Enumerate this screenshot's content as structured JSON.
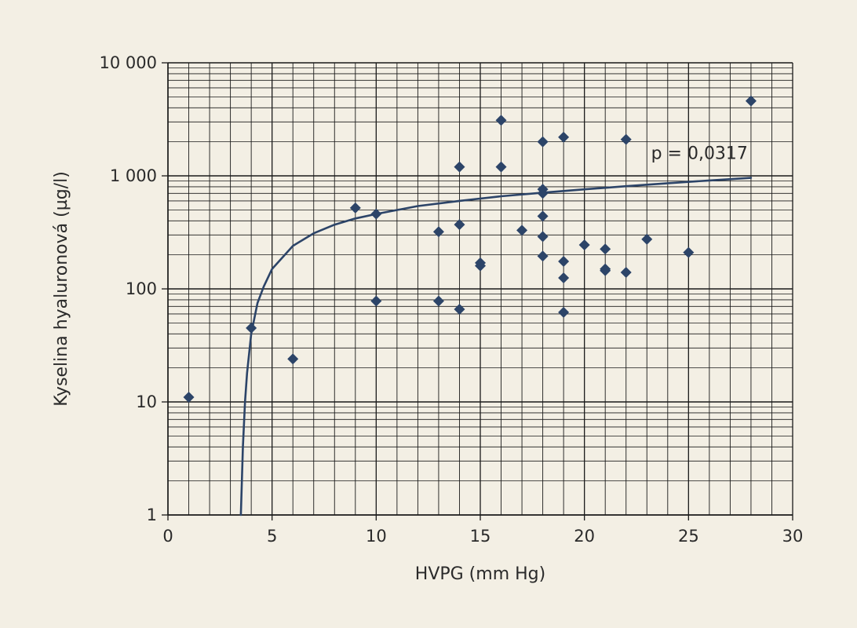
{
  "background": "#f3efe4",
  "chart_data": {
    "type": "scatter",
    "xlabel": "HVPG (mm Hg)",
    "ylabel": "Kyselina hyaluronová (µg/l)",
    "x_scale": "linear",
    "y_scale": "log",
    "xlim": [
      0,
      30
    ],
    "ylim": [
      1,
      10000
    ],
    "x_ticks": [
      0,
      5,
      10,
      15,
      20,
      25,
      30
    ],
    "x_tick_labels": [
      "0",
      "5",
      "10",
      "15",
      "20",
      "25",
      "30"
    ],
    "y_ticks": [
      1,
      10,
      100,
      1000,
      10000
    ],
    "y_tick_labels": [
      "1",
      "10",
      "100",
      "1 000",
      "10 000"
    ],
    "grid": true,
    "marker": "diamond",
    "marker_color": "#2c4468",
    "line_color": "#2c4468",
    "grid_color": "#1a1a1a",
    "points": [
      {
        "x": 1,
        "y": 11
      },
      {
        "x": 4,
        "y": 45
      },
      {
        "x": 6,
        "y": 24
      },
      {
        "x": 9,
        "y": 520
      },
      {
        "x": 10,
        "y": 460
      },
      {
        "x": 10,
        "y": 78
      },
      {
        "x": 13,
        "y": 320
      },
      {
        "x": 13,
        "y": 78
      },
      {
        "x": 14,
        "y": 1200
      },
      {
        "x": 14,
        "y": 370
      },
      {
        "x": 14,
        "y": 66
      },
      {
        "x": 15,
        "y": 170
      },
      {
        "x": 15,
        "y": 160
      },
      {
        "x": 16,
        "y": 3100
      },
      {
        "x": 16,
        "y": 1200
      },
      {
        "x": 17,
        "y": 330
      },
      {
        "x": 18,
        "y": 2000
      },
      {
        "x": 18,
        "y": 760
      },
      {
        "x": 18,
        "y": 700
      },
      {
        "x": 18,
        "y": 440
      },
      {
        "x": 18,
        "y": 290
      },
      {
        "x": 18,
        "y": 195
      },
      {
        "x": 19,
        "y": 2200
      },
      {
        "x": 19,
        "y": 175
      },
      {
        "x": 19,
        "y": 125
      },
      {
        "x": 19,
        "y": 62
      },
      {
        "x": 20,
        "y": 245
      },
      {
        "x": 21,
        "y": 225
      },
      {
        "x": 21,
        "y": 150
      },
      {
        "x": 21,
        "y": 145
      },
      {
        "x": 22,
        "y": 2100
      },
      {
        "x": 22,
        "y": 140
      },
      {
        "x": 23,
        "y": 275
      },
      {
        "x": 25,
        "y": 210
      },
      {
        "x": 28,
        "y": 4600
      }
    ],
    "trend_curve": [
      {
        "x": 3.5,
        "y": 1
      },
      {
        "x": 3.55,
        "y": 2
      },
      {
        "x": 3.6,
        "y": 4
      },
      {
        "x": 3.7,
        "y": 10
      },
      {
        "x": 3.8,
        "y": 18
      },
      {
        "x": 4.0,
        "y": 40
      },
      {
        "x": 4.3,
        "y": 75
      },
      {
        "x": 4.6,
        "y": 105
      },
      {
        "x": 5.0,
        "y": 150
      },
      {
        "x": 6.0,
        "y": 240
      },
      {
        "x": 7.0,
        "y": 310
      },
      {
        "x": 8.0,
        "y": 370
      },
      {
        "x": 9.0,
        "y": 420
      },
      {
        "x": 10,
        "y": 460
      },
      {
        "x": 12,
        "y": 540
      },
      {
        "x": 14,
        "y": 600
      },
      {
        "x": 16,
        "y": 660
      },
      {
        "x": 18,
        "y": 710
      },
      {
        "x": 20,
        "y": 760
      },
      {
        "x": 22,
        "y": 810
      },
      {
        "x": 24,
        "y": 860
      },
      {
        "x": 26,
        "y": 910
      },
      {
        "x": 28,
        "y": 960
      }
    ],
    "annotations": [
      {
        "text": "p = 0,0317",
        "x": 23.2,
        "y": 1600
      }
    ]
  }
}
